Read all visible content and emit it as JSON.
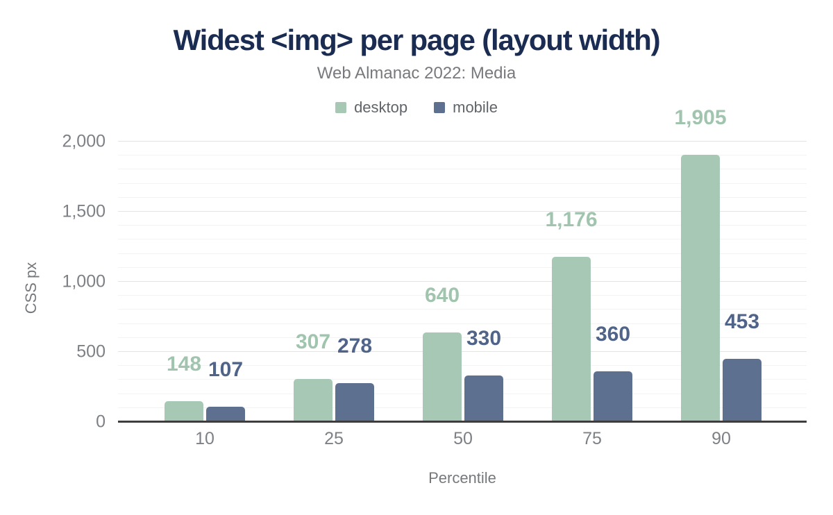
{
  "chart_data": {
    "type": "bar",
    "title": "Widest <img> per page (layout width)",
    "subtitle": "Web Almanac 2022: Media",
    "xlabel": "Percentile",
    "ylabel": "CSS px",
    "categories": [
      "10",
      "25",
      "50",
      "75",
      "90"
    ],
    "series": [
      {
        "name": "desktop",
        "color": "#a6c8b4",
        "label_color": "#a0c4ae",
        "values": [
          148,
          307,
          640,
          1176,
          1905
        ],
        "labels": [
          "148",
          "307",
          "640",
          "1,176",
          "1,905"
        ]
      },
      {
        "name": "mobile",
        "color": "#5d7090",
        "label_color": "#50648a",
        "values": [
          107,
          278,
          330,
          360,
          453
        ],
        "labels": [
          "107",
          "278",
          "330",
          "360",
          "453"
        ]
      }
    ],
    "y_ticks": [
      {
        "value": 0,
        "label": "0"
      },
      {
        "value": 500,
        "label": "500"
      },
      {
        "value": 1000,
        "label": "1,000"
      },
      {
        "value": 1500,
        "label": "1,500"
      },
      {
        "value": 2000,
        "label": "2,000"
      }
    ],
    "ylim": [
      0,
      2000
    ],
    "grid_minor_step": 100,
    "grid_major_step": 500,
    "grid": true,
    "legend_position": "top"
  },
  "colors": {
    "title": "#1b2c52",
    "subtitle": "#77797c",
    "tick_text": "#7d8185",
    "legend_text": "#606468",
    "axis_line": "#3d3d3d",
    "grid_major": "#e4e4e4",
    "grid_minor": "#f3f3f3",
    "background": "#ffffff"
  }
}
